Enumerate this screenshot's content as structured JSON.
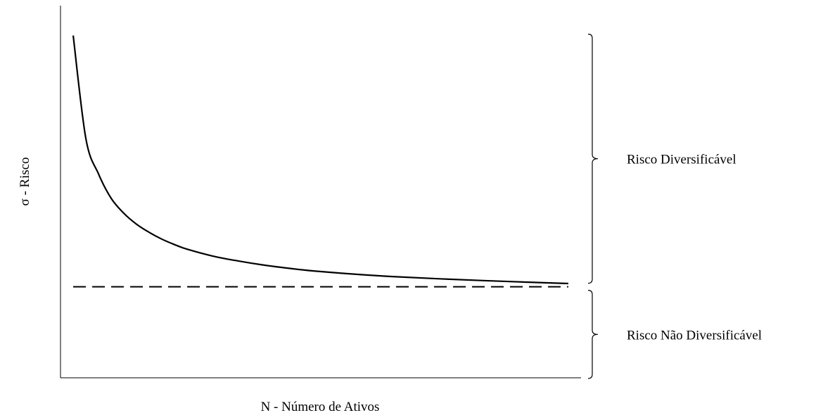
{
  "chart_data": {
    "type": "line",
    "xlabel": "N - Número de Ativos",
    "ylabel": "σ - Risco",
    "grid": false,
    "legend": "none",
    "series": [
      {
        "style": "solid",
        "x": [
          1,
          2,
          3,
          4,
          5,
          6,
          7,
          8,
          9,
          10,
          12,
          14,
          16,
          18,
          20,
          23,
          26,
          30,
          35,
          40
        ],
        "values": [
          1.0,
          0.62,
          0.49,
          0.4,
          0.345,
          0.305,
          0.275,
          0.25,
          0.23,
          0.213,
          0.188,
          0.17,
          0.155,
          0.143,
          0.133,
          0.122,
          0.113,
          0.104,
          0.095,
          0.087
        ]
      },
      {
        "style": "dashed",
        "x": [
          1,
          40
        ],
        "values": [
          0.075,
          0.075
        ]
      }
    ],
    "xlim": [
      0,
      41
    ],
    "ylim": [
      -0.26,
      1.11
    ],
    "annotations": [
      {
        "type": "brace",
        "text": "Risco Diversificável",
        "y_range": [
          0.075,
          1.0
        ]
      },
      {
        "type": "brace",
        "text": "Risco Não Diversificável",
        "y_range": [
          -0.26,
          0.075
        ]
      }
    ],
    "colors": {
      "line": "#000000"
    }
  }
}
